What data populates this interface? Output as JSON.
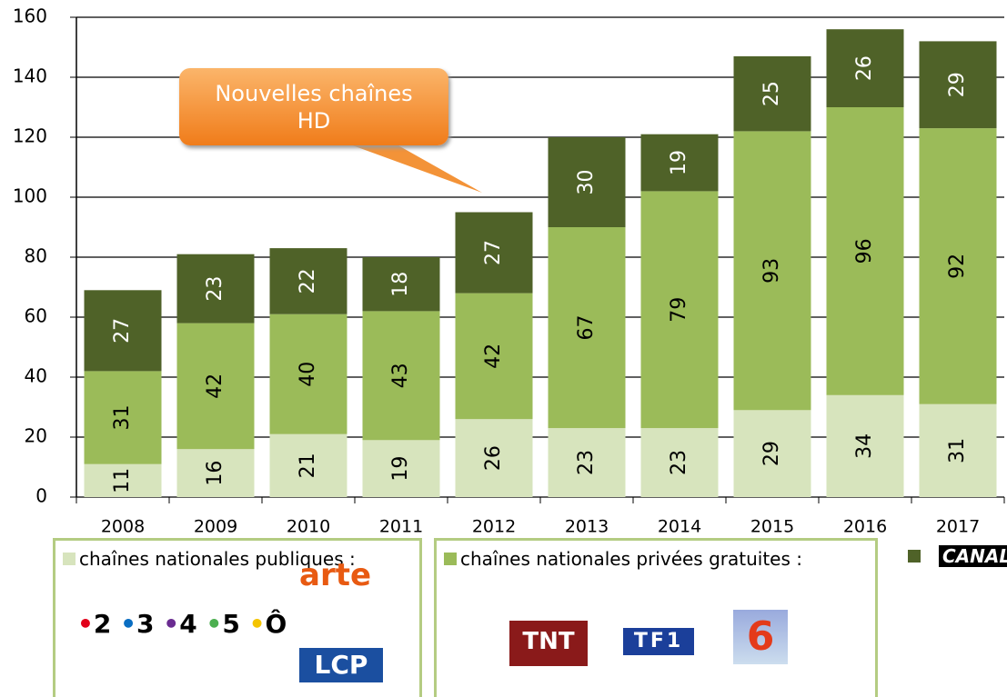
{
  "chart_data": {
    "type": "stacked_bar",
    "categories": [
      "2008",
      "2009",
      "2010",
      "2011",
      "2012",
      "2013",
      "2014",
      "2015",
      "2016",
      "2017"
    ],
    "series": [
      {
        "name": "chaînes nationales publiques :",
        "color": "#d7e4bd",
        "label_color": "#000000",
        "values": [
          11,
          16,
          21,
          19,
          26,
          23,
          23,
          29,
          34,
          31
        ]
      },
      {
        "name": "chaînes nationales privées gratuites :",
        "color": "#9bbb59",
        "label_color": "#000000",
        "values": [
          31,
          42,
          40,
          43,
          42,
          67,
          79,
          93,
          96,
          92
        ]
      },
      {
        "name": "CANAL+",
        "color": "#4f6228",
        "label_color": "#ffffff",
        "values": [
          27,
          23,
          22,
          18,
          27,
          30,
          19,
          25,
          26,
          29
        ]
      }
    ],
    "ylim": [
      0,
      160
    ],
    "yticks": [
      0,
      20,
      40,
      60,
      80,
      100,
      120,
      140,
      160
    ],
    "grid": true,
    "annotation": {
      "text": "Nouvelles chaînes HD",
      "category": "2012"
    }
  },
  "legend_logos": {
    "public": [
      "2",
      "3",
      "4",
      "5",
      "Ô",
      "arte",
      "LCP"
    ],
    "private": [
      "TNT",
      "TF1",
      "6"
    ]
  }
}
